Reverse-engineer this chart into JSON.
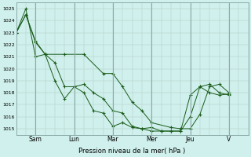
{
  "title": "",
  "xlabel": "Pression niveau de la mer( hPa )",
  "bg_color": "#cff0ec",
  "grid_color": "#b0c8c4",
  "line_color": "#1a5c1a",
  "ylim": [
    1014.5,
    1025.5
  ],
  "yticks": [
    1015,
    1016,
    1017,
    1018,
    1019,
    1020,
    1021,
    1022,
    1023,
    1024,
    1025
  ],
  "day_labels": [
    "Sam",
    "Lun",
    "Mar",
    "Mer",
    "Jeu",
    "V"
  ],
  "day_positions": [
    24,
    72,
    120,
    168,
    216,
    264
  ],
  "xlim": [
    0,
    288
  ],
  "series1_x": [
    0,
    12,
    24,
    36,
    48,
    60,
    72,
    84,
    96,
    108,
    120,
    132,
    144,
    156,
    168,
    180,
    192,
    204,
    216,
    228,
    240,
    252,
    264
  ],
  "series1_y": [
    1023.0,
    1025.0,
    1021.0,
    1021.2,
    1020.5,
    1018.5,
    1018.5,
    1018.0,
    1016.5,
    1016.3,
    1015.2,
    1015.5,
    1015.1,
    1015.0,
    1014.8,
    1014.8,
    1014.8,
    1014.8,
    1017.8,
    1018.5,
    1018.0,
    1017.8,
    1017.9
  ],
  "series2_x": [
    0,
    12,
    24,
    36,
    48,
    60,
    72,
    84,
    96,
    108,
    120,
    132,
    144,
    156,
    168,
    180,
    192,
    204,
    216,
    228,
    240,
    252,
    264
  ],
  "series2_y": [
    1023.0,
    1024.5,
    1022.3,
    1021.2,
    1019.0,
    1017.5,
    1018.5,
    1018.7,
    1018.0,
    1017.5,
    1016.5,
    1016.3,
    1015.2,
    1015.0,
    1015.1,
    1014.8,
    1014.8,
    1014.8,
    1016.0,
    1018.5,
    1018.7,
    1018.0,
    1017.8
  ],
  "series3_x": [
    0,
    12,
    24,
    36,
    60,
    84,
    108,
    120,
    132,
    144,
    156,
    168,
    192,
    204,
    216,
    228,
    240,
    252,
    264
  ],
  "series3_y": [
    1023.0,
    1024.5,
    1022.2,
    1021.2,
    1021.2,
    1021.2,
    1019.6,
    1019.6,
    1018.5,
    1017.2,
    1016.5,
    1015.5,
    1015.1,
    1015.0,
    1015.0,
    1016.2,
    1018.5,
    1018.7,
    1018.0
  ]
}
